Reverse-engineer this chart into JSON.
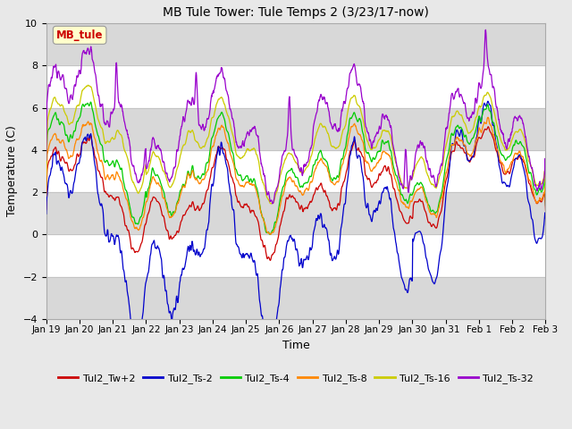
{
  "title": "MB Tule Tower: Tule Temps 2 (3/23/17-now)",
  "xlabel": "Time",
  "ylabel": "Temperature (C)",
  "ylim": [
    -4,
    10
  ],
  "yticks": [
    -4,
    -2,
    0,
    2,
    4,
    6,
    8,
    10
  ],
  "series_labels": [
    "Tul2_Tw+2",
    "Tul2_Ts-2",
    "Tul2_Ts-4",
    "Tul2_Ts-8",
    "Tul2_Ts-16",
    "Tul2_Ts-32"
  ],
  "series_colors": [
    "#cc0000",
    "#0000cc",
    "#00cc00",
    "#ff8800",
    "#cccc00",
    "#9900cc"
  ],
  "background_color": "#e8e8e8",
  "plot_bg_color": "#ffffff",
  "band_color": "#d8d8d8",
  "annotation_text": "MB_tule",
  "annotation_color": "#cc0000",
  "annotation_bg": "#ffffcc",
  "x_start": 0,
  "x_end": 15,
  "x_tick_labels": [
    "Jan 19",
    "Jan 20",
    "Jan 21",
    "Jan 22",
    "Jan 23",
    "Jan 24",
    "Jan 25",
    "Jan 26",
    "Jan 27",
    "Jan 28",
    "Jan 29",
    "Jan 30",
    "Jan 31",
    "Feb 1",
    "Feb 2",
    "Feb 3"
  ],
  "x_tick_positions": [
    0,
    1,
    2,
    3,
    4,
    5,
    6,
    7,
    8,
    9,
    10,
    11,
    12,
    13,
    14,
    15
  ]
}
